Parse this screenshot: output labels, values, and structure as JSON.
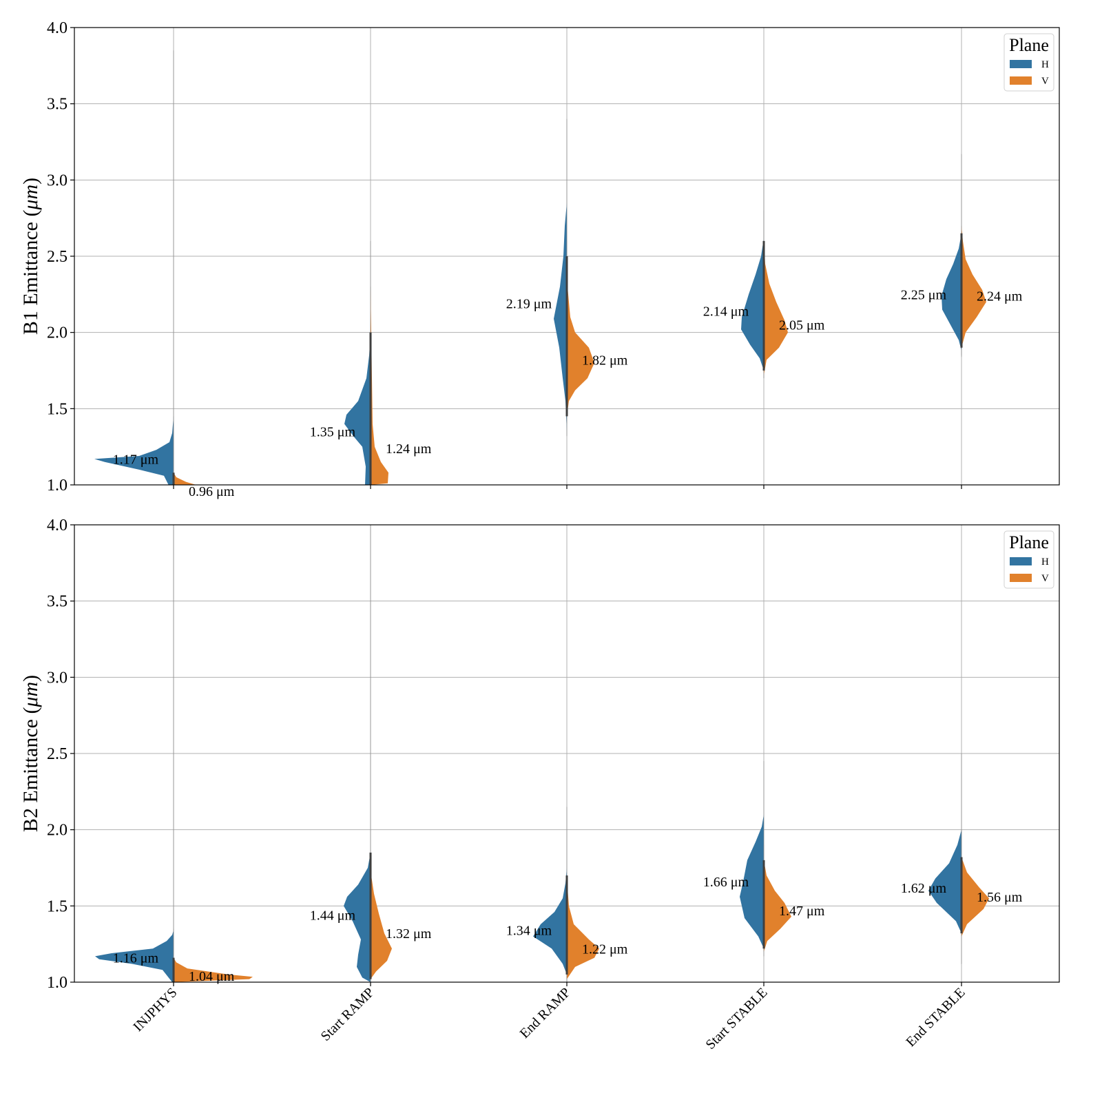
{
  "chart_data": [
    {
      "type": "violin",
      "panel": "top",
      "ylabel_prefix": "B1 Emittance (",
      "ylabel_unit": "μm",
      "ylabel_suffix": ")",
      "ylim": [
        1.0,
        4.0
      ],
      "yticks": [
        1.0,
        1.5,
        2.0,
        2.5,
        3.0,
        3.5,
        4.0
      ],
      "ytick_labels": [
        "1.0",
        "1.5",
        "2.0",
        "2.5",
        "3.0",
        "3.5",
        "4.0"
      ],
      "grid": true,
      "split": true,
      "categories": [
        "INJPHYS",
        "Start RAMP",
        "End RAMP",
        "Start STABLE",
        "End STABLE"
      ],
      "legend": {
        "title": "Plane",
        "position": "top-right",
        "entries": [
          "H",
          "V"
        ]
      },
      "series": [
        {
          "name": "H",
          "color": "#3274a1",
          "medians": [
            1.17,
            1.35,
            2.19,
            2.14,
            2.25
          ],
          "labels": [
            "1.17 μm",
            "1.35 μm",
            "2.19 μm",
            "2.14 μm",
            "2.25 μm"
          ],
          "ranges": [
            [
              0.95,
              3.85
            ],
            [
              0.98,
              2.6
            ],
            [
              1.32,
              3.4
            ],
            [
              1.7,
              3.0
            ],
            [
              1.84,
              3.17
            ]
          ]
        },
        {
          "name": "V",
          "color": "#e1812c",
          "medians": [
            0.96,
            1.24,
            1.82,
            2.05,
            2.24
          ],
          "labels": [
            "0.96 μm",
            "1.24 μm",
            "1.82 μm",
            "2.05 μm",
            "2.24 μm"
          ],
          "ranges": [
            [
              0.9,
              1.45
            ],
            [
              0.98,
              2.3
            ],
            [
              1.4,
              2.6
            ],
            [
              1.7,
              2.8
            ],
            [
              1.85,
              2.7
            ]
          ]
        }
      ]
    },
    {
      "type": "violin",
      "panel": "bottom",
      "ylabel_prefix": "B2 Emittance (",
      "ylabel_unit": "μm",
      "ylabel_suffix": ")",
      "ylim": [
        1.0,
        4.0
      ],
      "yticks": [
        1.0,
        1.5,
        2.0,
        2.5,
        3.0,
        3.5,
        4.0
      ],
      "ytick_labels": [
        "1.0",
        "1.5",
        "2.0",
        "2.5",
        "3.0",
        "3.5",
        "4.0"
      ],
      "grid": true,
      "split": true,
      "categories": [
        "INJPHYS",
        "Start RAMP",
        "End RAMP",
        "Start STABLE",
        "End STABLE"
      ],
      "xtick_labels": [
        "INJPHYS",
        "Start RAMP",
        "End RAMP",
        "Start STABLE",
        "End STABLE"
      ],
      "legend": {
        "title": "Plane",
        "position": "top-right",
        "entries": [
          "H",
          "V"
        ]
      },
      "series": [
        {
          "name": "H",
          "color": "#3274a1",
          "medians": [
            1.16,
            1.44,
            1.34,
            1.66,
            1.62
          ],
          "labels": [
            "1.16 μm",
            "1.44 μm",
            "1.34 μm",
            "1.66 μm",
            "1.62 μm"
          ],
          "ranges": [
            [
              0.95,
              4.0
            ],
            [
              0.99,
              4.0
            ],
            [
              1.0,
              2.15
            ],
            [
              1.17,
              2.45
            ],
            [
              1.12,
              2.5
            ]
          ]
        },
        {
          "name": "V",
          "color": "#e1812c",
          "medians": [
            1.04,
            1.32,
            1.22,
            1.47,
            1.56
          ],
          "labels": [
            "1.04 μm",
            "1.32 μm",
            "1.22 μm",
            "1.47 μm",
            "1.56 μm"
          ],
          "ranges": [
            [
              1.0,
              1.35
            ],
            [
              1.0,
              1.85
            ],
            [
              1.0,
              1.7
            ],
            [
              1.2,
              1.9
            ],
            [
              1.3,
              2.0
            ]
          ]
        }
      ]
    }
  ]
}
